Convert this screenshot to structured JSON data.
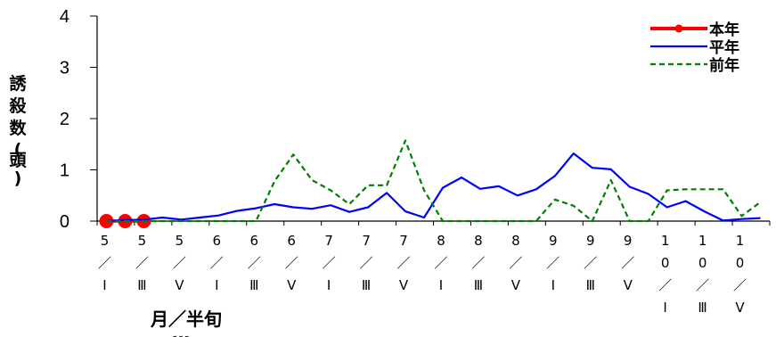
{
  "chart_data": {
    "type": "line",
    "ylabel": "誘殺数(頭)",
    "xlabel": "月／半旬",
    "xlabel_overflow": "…",
    "ylim": [
      0,
      4
    ],
    "yticks": [
      "0",
      "1",
      "2",
      "3",
      "4"
    ],
    "xlabels": [
      [
        "5",
        "／",
        "Ⅰ"
      ],
      [
        "5",
        "／",
        "Ⅲ"
      ],
      [
        "5",
        "／",
        "Ⅴ"
      ],
      [
        "6",
        "／",
        "Ⅰ"
      ],
      [
        "6",
        "／",
        "Ⅲ"
      ],
      [
        "6",
        "／",
        "Ⅴ"
      ],
      [
        "7",
        "／",
        "Ⅰ"
      ],
      [
        "7",
        "／",
        "Ⅲ"
      ],
      [
        "7",
        "／",
        "Ⅴ"
      ],
      [
        "8",
        "／",
        "Ⅰ"
      ],
      [
        "8",
        "／",
        "Ⅲ"
      ],
      [
        "8",
        "／",
        "Ⅴ"
      ],
      [
        "9",
        "／",
        "Ⅰ"
      ],
      [
        "9",
        "／",
        "Ⅲ"
      ],
      [
        "9",
        "／",
        "Ⅴ"
      ],
      [
        "1",
        "0",
        "／",
        "Ⅰ"
      ],
      [
        "1",
        "0",
        "／",
        "Ⅲ"
      ],
      [
        "1",
        "0",
        "／",
        "Ⅴ"
      ]
    ],
    "legend_position": "top-right",
    "series": [
      {
        "name": "本年",
        "color": "#ff0000",
        "style": "solid-marker",
        "values": [
          0,
          0,
          0
        ]
      },
      {
        "name": "平年",
        "color": "#0000ff",
        "style": "solid",
        "values": [
          0,
          0.02,
          0.03,
          0.07,
          0.03,
          0.07,
          0.11,
          0.2,
          0.25,
          0.33,
          0.27,
          0.24,
          0.31,
          0.18,
          0.27,
          0.55,
          0.19,
          0.07,
          0.65,
          0.85,
          0.63,
          0.68,
          0.5,
          0.62,
          0.88,
          1.32,
          1.04,
          1.01,
          0.67,
          0.53,
          0.27,
          0.39,
          0.19,
          0.01,
          0.04,
          0.06
        ]
      },
      {
        "name": "前年",
        "color": "#008000",
        "style": "dashed",
        "values": [
          0,
          0,
          0,
          0,
          0,
          0,
          0,
          0,
          0,
          0.78,
          1.3,
          0.8,
          0.6,
          0.33,
          0.7,
          0.7,
          1.57,
          0.6,
          0,
          0,
          0,
          0,
          0,
          0,
          0.42,
          0.3,
          0,
          0.8,
          0,
          0,
          0.6,
          0.62,
          0.62,
          0.62,
          0.1,
          0.37
        ]
      }
    ]
  }
}
